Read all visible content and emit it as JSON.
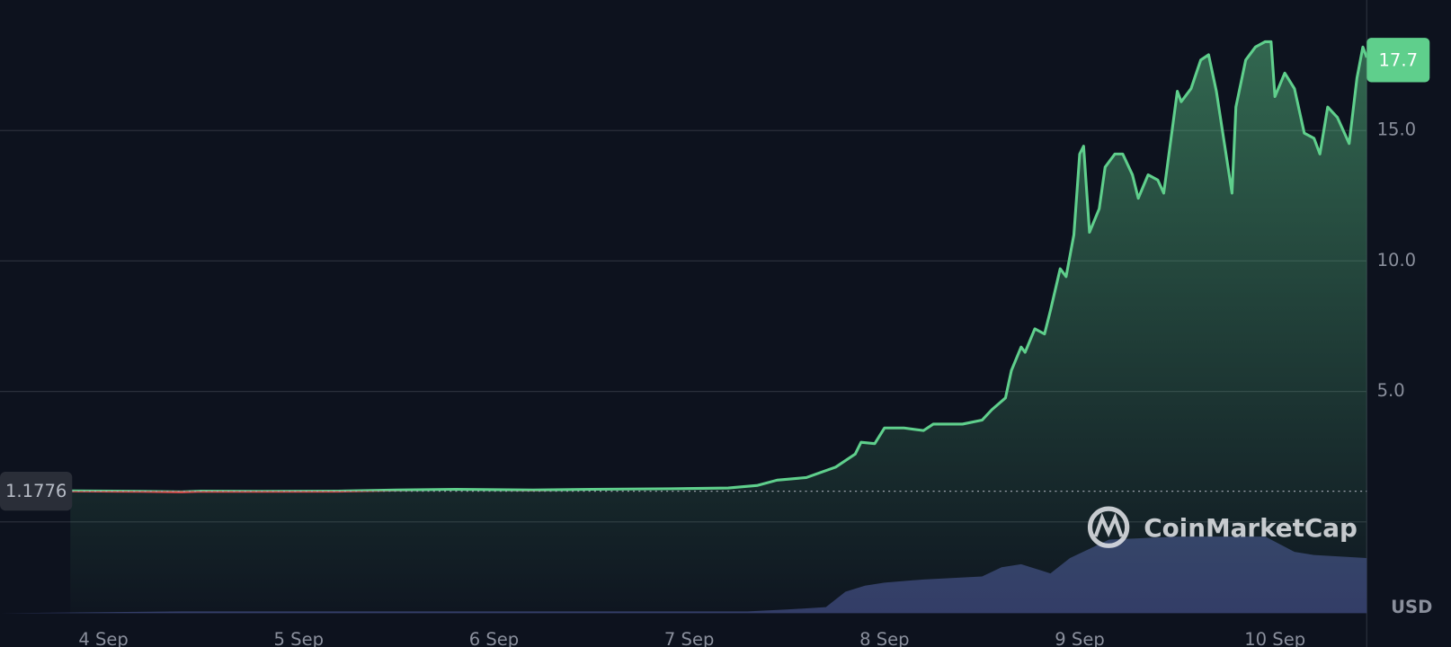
{
  "chart_data": {
    "type": "line",
    "xlim": [
      3.47,
      10.47
    ],
    "xticks": [
      {
        "value": 4,
        "label": "4 Sep"
      },
      {
        "value": 5,
        "label": "5 Sep"
      },
      {
        "value": 6,
        "label": "6 Sep"
      },
      {
        "value": 7,
        "label": "7 Sep"
      },
      {
        "value": 8,
        "label": "8 Sep"
      },
      {
        "value": 9,
        "label": "9 Sep"
      },
      {
        "value": 10,
        "label": "10 Sep"
      }
    ],
    "ylim": [
      -3.5,
      20
    ],
    "yticks": [
      {
        "value": 0,
        "label": null
      },
      {
        "value": 5,
        "label": "5.0"
      },
      {
        "value": 10,
        "label": "10.0"
      },
      {
        "value": 15,
        "label": "15.0"
      }
    ],
    "y2lim": [
      0,
      100
    ],
    "grid": true,
    "reference_value": 1.1776,
    "current_value": 17.7,
    "unit_label": "USD",
    "watermark": "CoinMarketCap",
    "series": [
      {
        "name": "Price",
        "color": "#5fcf8c",
        "below_color": "#e0504f",
        "x": [
          3.83,
          4.2,
          4.4,
          4.5,
          4.8,
          5.2,
          5.5,
          5.8,
          6.2,
          6.5,
          6.9,
          7.2,
          7.35,
          7.45,
          7.6,
          7.75,
          7.85,
          7.88,
          7.95,
          8.0,
          8.1,
          8.2,
          8.25,
          8.4,
          8.5,
          8.55,
          8.62,
          8.65,
          8.7,
          8.72,
          8.77,
          8.82,
          8.85,
          8.9,
          8.93,
          8.97,
          9.0,
          9.02,
          9.05,
          9.1,
          9.13,
          9.18,
          9.22,
          9.27,
          9.3,
          9.35,
          9.4,
          9.43,
          9.5,
          9.52,
          9.57,
          9.62,
          9.66,
          9.7,
          9.78,
          9.8,
          9.85,
          9.9,
          9.95,
          9.98,
          10.0,
          10.05,
          10.1,
          10.15,
          10.2,
          10.23,
          10.27,
          10.32,
          10.38,
          10.42,
          10.45,
          10.47
        ],
        "values": [
          1.19,
          1.17,
          1.15,
          1.18,
          1.17,
          1.18,
          1.22,
          1.25,
          1.22,
          1.25,
          1.27,
          1.3,
          1.4,
          1.6,
          1.7,
          2.1,
          2.6,
          3.05,
          3.0,
          3.6,
          3.6,
          3.5,
          3.75,
          3.75,
          3.9,
          4.3,
          4.75,
          5.8,
          6.7,
          6.5,
          7.4,
          7.2,
          8.1,
          9.7,
          9.4,
          11.0,
          14.1,
          14.4,
          11.1,
          12.0,
          13.6,
          14.1,
          14.1,
          13.3,
          12.4,
          13.3,
          13.1,
          12.6,
          16.5,
          16.1,
          16.6,
          17.7,
          17.9,
          16.5,
          12.6,
          15.9,
          17.7,
          18.2,
          18.4,
          18.4,
          16.3,
          17.2,
          16.6,
          14.9,
          14.7,
          14.1,
          15.9,
          15.5,
          14.5,
          17.0,
          18.2,
          17.8
        ]
      },
      {
        "name": "Volume",
        "color": "#323a66",
        "axis": "y2",
        "x": [
          3.47,
          4.4,
          7.3,
          7.5,
          7.7,
          7.8,
          7.9,
          8.0,
          8.2,
          8.5,
          8.6,
          8.7,
          8.8,
          8.85,
          8.95,
          9.05,
          9.15,
          9.5,
          9.95,
          10.1,
          10.2,
          10.47
        ],
        "values": [
          0,
          0.3,
          0.3,
          0.6,
          1.0,
          3.5,
          4.5,
          5,
          5.5,
          6,
          7.5,
          8,
          7,
          6.5,
          9,
          10.5,
          12,
          12.5,
          12.5,
          10,
          9.5,
          9
        ]
      }
    ]
  }
}
